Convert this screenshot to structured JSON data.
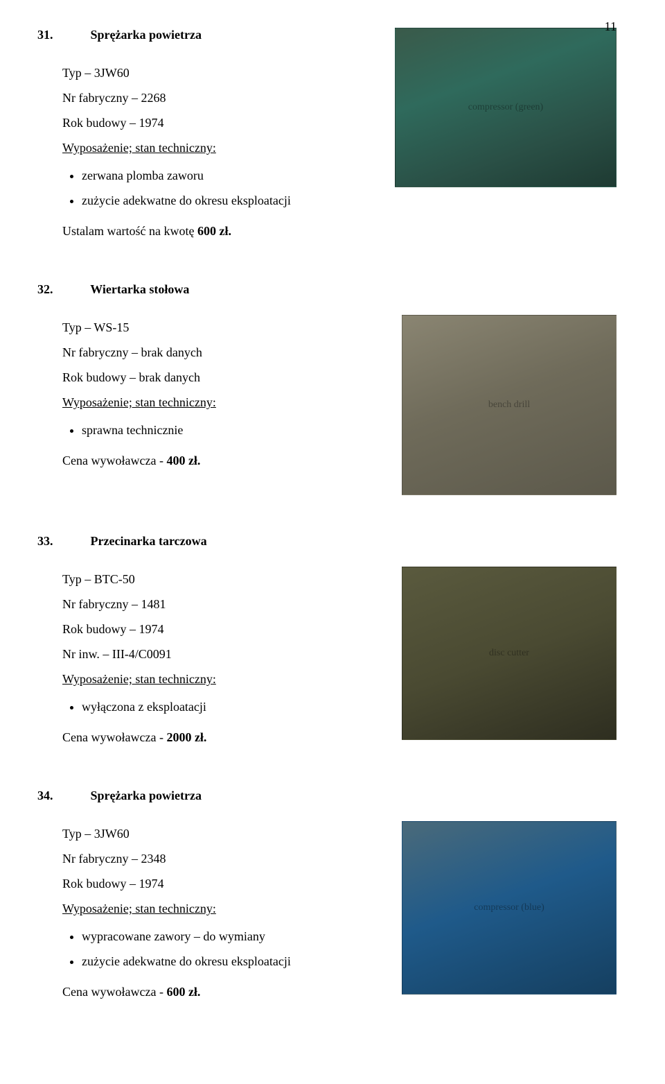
{
  "page_number": "11",
  "sections": [
    {
      "num": "31.",
      "title": "Sprężarka powietrza",
      "lines": [
        "Typ – 3JW60",
        "Nr fabryczny – 2268",
        "Rok budowy – 1974"
      ],
      "equip_label": "Wyposażenie; stan techniczny:",
      "bullets": [
        "zerwana plomba zaworu",
        "zużycie adekwatne do okresu eksploatacji"
      ],
      "valuation_prefix": "Ustalam wartość na kwotę ",
      "valuation_value": "600 zł.",
      "image_alt": "compressor (green)"
    },
    {
      "num": "32.",
      "title": "Wiertarka stołowa",
      "lines": [
        "Typ – WS-15",
        "Nr fabryczny – brak danych",
        "Rok budowy – brak danych"
      ],
      "equip_label": "Wyposażenie; stan techniczny:",
      "bullets": [
        "sprawna technicznie"
      ],
      "valuation_prefix": "Cena wywoławcza - ",
      "valuation_value": "400 zł.",
      "image_alt": "bench drill"
    },
    {
      "num": "33.",
      "title": "Przecinarka tarczowa",
      "lines": [
        "Typ – BTC-50",
        "Nr fabryczny – 1481",
        "Rok budowy – 1974",
        "Nr inw. – III-4/C0091"
      ],
      "equip_label": "Wyposażenie; stan techniczny:",
      "bullets": [
        "wyłączona z eksploatacji"
      ],
      "valuation_prefix": "Cena wywoławcza - ",
      "valuation_value": "2000 zł.",
      "image_alt": "disc cutter"
    },
    {
      "num": "34.",
      "title": "Sprężarka powietrza",
      "lines": [
        "Typ – 3JW60",
        "Nr fabryczny – 2348",
        "Rok budowy – 1974"
      ],
      "equip_label": "Wyposażenie; stan techniczny:",
      "bullets": [
        "wypracowane zawory – do wymiany",
        "zużycie adekwatne do okresu eksploatacji"
      ],
      "valuation_prefix": "Cena wywoławcza - ",
      "valuation_value": "600 zł.",
      "image_alt": "compressor (blue)"
    }
  ]
}
